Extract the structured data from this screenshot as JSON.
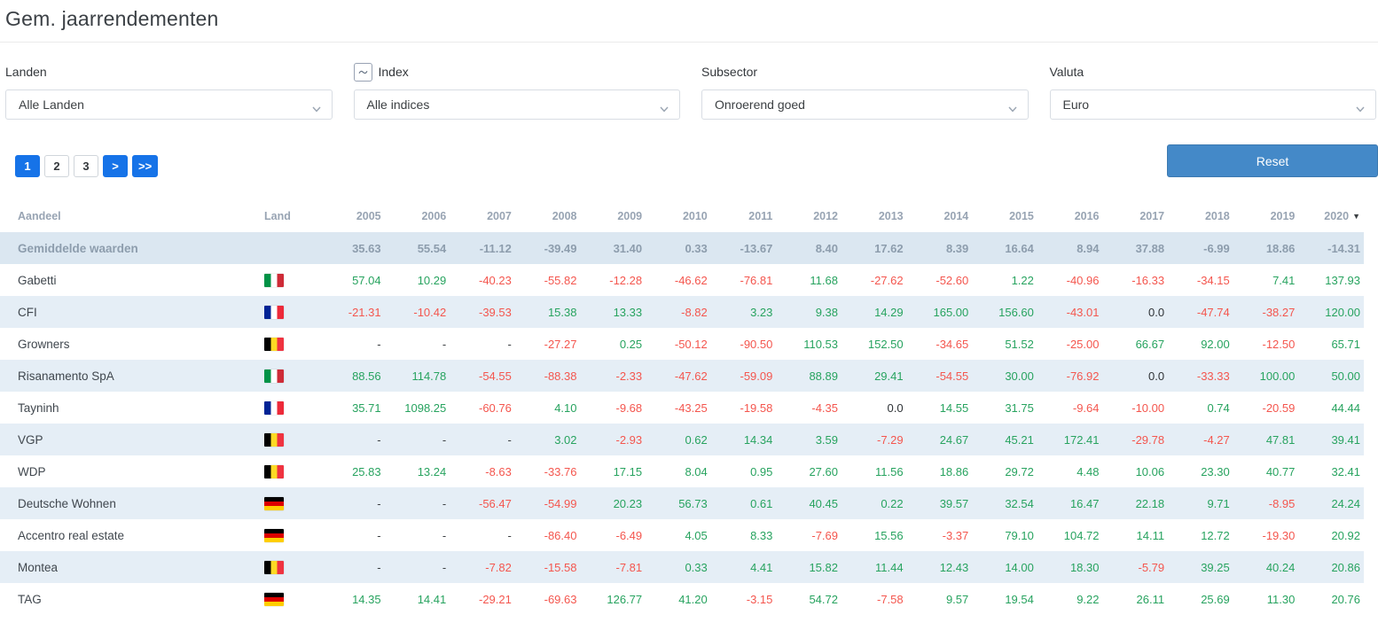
{
  "page": {
    "title": "Gem. jaarrendementen"
  },
  "colors": {
    "positive": "#27a35f",
    "negative": "#f4564e",
    "accent_blue": "#1673e8",
    "reset_blue": "#4489c8"
  },
  "filters": [
    {
      "label": "Landen",
      "value": "Alle Landen"
    },
    {
      "label": "Index",
      "value": "Alle indices",
      "icon": "chart-line-icon"
    },
    {
      "label": "Subsector",
      "value": "Onroerend goed"
    },
    {
      "label": "Valuta",
      "value": "Euro"
    }
  ],
  "pagination": {
    "buttons": [
      {
        "label": "1",
        "style": "primary"
      },
      {
        "label": "2",
        "style": "default"
      },
      {
        "label": "3",
        "style": "default"
      },
      {
        "label": ">",
        "style": "primary"
      },
      {
        "label": ">>",
        "style": "primary"
      }
    ]
  },
  "toolbar": {
    "reset_label": "Reset"
  },
  "table": {
    "columns": [
      "Aandeel",
      "Land",
      "2005",
      "2006",
      "2007",
      "2008",
      "2009",
      "2010",
      "2011",
      "2012",
      "2013",
      "2014",
      "2015",
      "2016",
      "2017",
      "2018",
      "2019",
      "2020"
    ],
    "sorted_column": "2020",
    "sort_direction": "desc",
    "rows": [
      {
        "name": "Gemiddelde waarden",
        "country": "",
        "average": true,
        "values": [
          "35.63",
          "55.54",
          "-11.12",
          "-39.49",
          "31.40",
          "0.33",
          "-13.67",
          "8.40",
          "17.62",
          "8.39",
          "16.64",
          "8.94",
          "37.88",
          "-6.99",
          "18.86",
          "-14.31"
        ]
      },
      {
        "name": "Gabetti",
        "country": "it",
        "average": false,
        "values": [
          "57.04",
          "10.29",
          "-40.23",
          "-55.82",
          "-12.28",
          "-46.62",
          "-76.81",
          "11.68",
          "-27.62",
          "-52.60",
          "1.22",
          "-40.96",
          "-16.33",
          "-34.15",
          "7.41",
          "137.93"
        ]
      },
      {
        "name": "CFI",
        "country": "fr",
        "average": false,
        "values": [
          "-21.31",
          "-10.42",
          "-39.53",
          "15.38",
          "13.33",
          "-8.82",
          "3.23",
          "9.38",
          "14.29",
          "165.00",
          "156.60",
          "-43.01",
          "0.0",
          "-47.74",
          "-38.27",
          "120.00"
        ]
      },
      {
        "name": "Growners",
        "country": "be",
        "average": false,
        "values": [
          "-",
          "-",
          "-",
          "-27.27",
          "0.25",
          "-50.12",
          "-90.50",
          "110.53",
          "152.50",
          "-34.65",
          "51.52",
          "-25.00",
          "66.67",
          "92.00",
          "-12.50",
          "65.71"
        ]
      },
      {
        "name": "Risanamento SpA",
        "country": "it",
        "average": false,
        "values": [
          "88.56",
          "114.78",
          "-54.55",
          "-88.38",
          "-2.33",
          "-47.62",
          "-59.09",
          "88.89",
          "29.41",
          "-54.55",
          "30.00",
          "-76.92",
          "0.0",
          "-33.33",
          "100.00",
          "50.00"
        ]
      },
      {
        "name": "Tayninh",
        "country": "fr",
        "average": false,
        "values": [
          "35.71",
          "1098.25",
          "-60.76",
          "4.10",
          "-9.68",
          "-43.25",
          "-19.58",
          "-4.35",
          "0.0",
          "14.55",
          "31.75",
          "-9.64",
          "-10.00",
          "0.74",
          "-20.59",
          "44.44"
        ]
      },
      {
        "name": "VGP",
        "country": "be",
        "average": false,
        "values": [
          "-",
          "-",
          "-",
          "3.02",
          "-2.93",
          "0.62",
          "14.34",
          "3.59",
          "-7.29",
          "24.67",
          "45.21",
          "172.41",
          "-29.78",
          "-4.27",
          "47.81",
          "39.41"
        ]
      },
      {
        "name": "WDP",
        "country": "be",
        "average": false,
        "values": [
          "25.83",
          "13.24",
          "-8.63",
          "-33.76",
          "17.15",
          "8.04",
          "0.95",
          "27.60",
          "11.56",
          "18.86",
          "29.72",
          "4.48",
          "10.06",
          "23.30",
          "40.77",
          "32.41"
        ]
      },
      {
        "name": "Deutsche Wohnen",
        "country": "de",
        "average": false,
        "values": [
          "-",
          "-",
          "-56.47",
          "-54.99",
          "20.23",
          "56.73",
          "0.61",
          "40.45",
          "0.22",
          "39.57",
          "32.54",
          "16.47",
          "22.18",
          "9.71",
          "-8.95",
          "24.24"
        ]
      },
      {
        "name": "Accentro real estate",
        "country": "de",
        "average": false,
        "values": [
          "-",
          "-",
          "-",
          "-86.40",
          "-6.49",
          "4.05",
          "8.33",
          "-7.69",
          "15.56",
          "-3.37",
          "79.10",
          "104.72",
          "14.11",
          "12.72",
          "-19.30",
          "20.92"
        ]
      },
      {
        "name": "Montea",
        "country": "be",
        "average": false,
        "values": [
          "-",
          "-",
          "-7.82",
          "-15.58",
          "-7.81",
          "0.33",
          "4.41",
          "15.82",
          "11.44",
          "12.43",
          "14.00",
          "18.30",
          "-5.79",
          "39.25",
          "40.24",
          "20.86"
        ]
      },
      {
        "name": "TAG",
        "country": "de",
        "average": false,
        "values": [
          "14.35",
          "14.41",
          "-29.21",
          "-69.63",
          "126.77",
          "41.20",
          "-3.15",
          "54.72",
          "-7.58",
          "9.57",
          "19.54",
          "9.22",
          "26.11",
          "25.69",
          "11.30",
          "20.76"
        ]
      }
    ]
  }
}
